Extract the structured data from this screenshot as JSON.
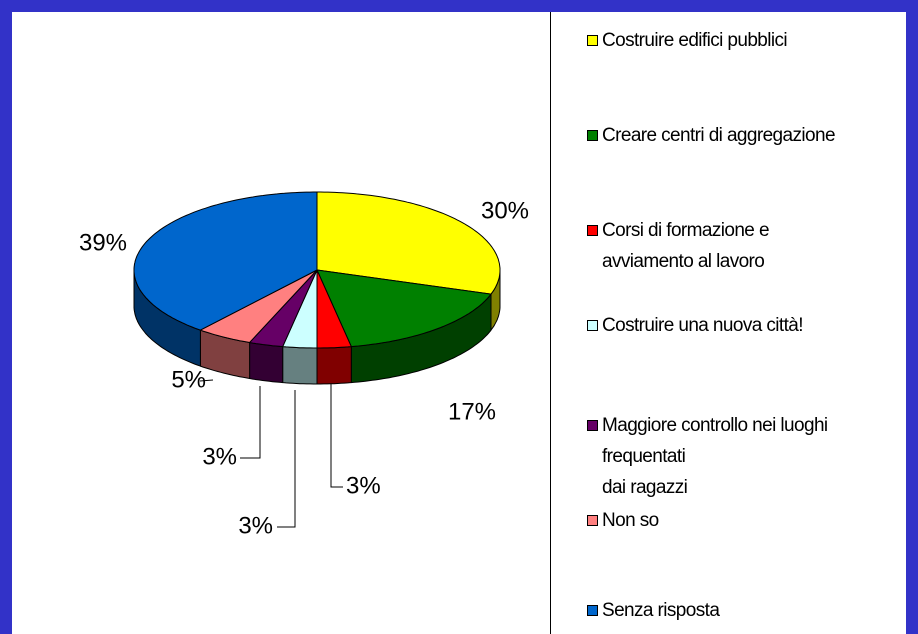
{
  "chart_data": {
    "type": "pie3d",
    "categories": [
      "Costruire edifici pubblici",
      "Creare centri di aggregazione",
      "Corsi di formazione e\navviamento al lavoro",
      "Costruire una nuova città!",
      "Maggiore controllo nei luoghi\nfrequentati\ndai ragazzi",
      "Non so",
      "Senza risposta"
    ],
    "values": [
      30,
      17,
      3,
      3,
      3,
      5,
      39
    ],
    "value_labels": [
      "30%",
      "17%",
      "3%",
      "3%",
      "3%",
      "5%",
      "39%"
    ],
    "colors": [
      "#ffff00",
      "#008000",
      "#ff0000",
      "#ccffff",
      "#660066",
      "#ff8080",
      "#0066cc"
    ],
    "legend": "right"
  }
}
